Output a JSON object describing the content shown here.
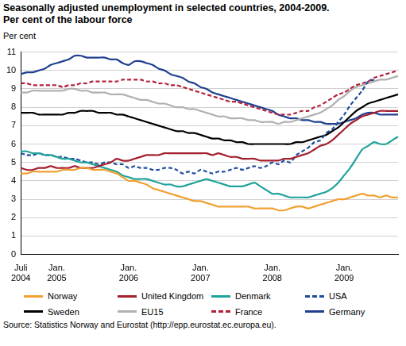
{
  "chart_data": {
    "type": "line",
    "title": "Seasonally adjusted unemployment in selected countries, 2004-2009.",
    "subtitle": "Per cent of the labour force",
    "y_label": "Per cent",
    "source": "Source: Statistics Norway and  Eurostat (http://epp.eurostat.ec.europa.eu).",
    "categories": [
      "Juli 2004",
      null,
      null,
      null,
      null,
      null,
      "Jan. 2005",
      null,
      null,
      null,
      null,
      null,
      null,
      null,
      null,
      null,
      null,
      null,
      "Jan. 2006",
      null,
      null,
      null,
      null,
      null,
      null,
      null,
      null,
      null,
      null,
      null,
      "Jan. 2007",
      null,
      null,
      null,
      null,
      null,
      null,
      null,
      null,
      null,
      null,
      null,
      "Jan. 2008",
      null,
      null,
      null,
      null,
      null,
      null,
      null,
      null,
      null,
      null,
      null,
      "Jan. 2009",
      null,
      null,
      null,
      null,
      null,
      null,
      null,
      null,
      null
    ],
    "ylim": [
      0,
      11
    ],
    "yticks": [
      0,
      1,
      2,
      3,
      4,
      5,
      6,
      7,
      8,
      9,
      10,
      11
    ],
    "grid": true,
    "legend": "bottom",
    "series": [
      {
        "name": "Norway",
        "color": "#f0a030",
        "line_style": "solid",
        "values": [
          4.4,
          4.4,
          4.5,
          4.5,
          4.5,
          4.5,
          4.5,
          4.6,
          4.6,
          4.6,
          4.7,
          4.7,
          4.6,
          4.6,
          4.6,
          4.5,
          4.4,
          4.2,
          4.0,
          4.0,
          3.9,
          3.8,
          3.6,
          3.5,
          3.4,
          3.3,
          3.2,
          3.1,
          3.0,
          2.9,
          2.9,
          2.8,
          2.7,
          2.6,
          2.6,
          2.6,
          2.6,
          2.6,
          2.6,
          2.5,
          2.5,
          2.5,
          2.5,
          2.4,
          2.4,
          2.5,
          2.6,
          2.6,
          2.5,
          2.6,
          2.7,
          2.8,
          2.9,
          3.0,
          3.0,
          3.1,
          3.2,
          3.3,
          3.2,
          3.2,
          3.1,
          3.2,
          3.1,
          3.1
        ]
      },
      {
        "name": "United Kingdom",
        "color": "#a31f2e",
        "line_style": "solid",
        "values": [
          4.7,
          4.6,
          4.6,
          4.7,
          4.7,
          4.8,
          4.7,
          4.7,
          4.7,
          4.8,
          4.7,
          4.7,
          4.7,
          4.8,
          4.9,
          5.0,
          5.2,
          5.1,
          5.1,
          5.2,
          5.3,
          5.4,
          5.4,
          5.4,
          5.5,
          5.5,
          5.5,
          5.5,
          5.5,
          5.5,
          5.5,
          5.5,
          5.4,
          5.5,
          5.4,
          5.3,
          5.3,
          5.2,
          5.2,
          5.2,
          5.1,
          5.1,
          5.1,
          5.1,
          5.2,
          5.2,
          5.3,
          5.4,
          5.5,
          5.7,
          5.9,
          6.0,
          6.2,
          6.5,
          6.8,
          7.1,
          7.3,
          7.5,
          7.6,
          7.7,
          7.8,
          7.8,
          7.8,
          7.8
        ]
      },
      {
        "name": "Denmark",
        "color": "#1fa39a",
        "line_style": "solid",
        "values": [
          5.6,
          5.6,
          5.5,
          5.5,
          5.4,
          5.4,
          5.3,
          5.2,
          5.2,
          5.1,
          5.0,
          5.0,
          4.9,
          4.8,
          4.7,
          4.6,
          4.5,
          4.3,
          4.2,
          4.1,
          4.1,
          4.1,
          4.0,
          3.9,
          3.8,
          3.8,
          3.7,
          3.7,
          3.8,
          3.9,
          4.0,
          4.1,
          4.0,
          3.9,
          3.8,
          3.7,
          3.7,
          3.7,
          3.8,
          3.9,
          3.7,
          3.5,
          3.3,
          3.3,
          3.2,
          3.1,
          3.1,
          3.1,
          3.1,
          3.2,
          3.3,
          3.4,
          3.6,
          3.9,
          4.3,
          4.7,
          5.2,
          5.7,
          5.9,
          6.1,
          6.0,
          6.0,
          6.2,
          6.4
        ]
      },
      {
        "name": "USA",
        "color": "#1e4d9e",
        "line_style": "dashed",
        "values": [
          5.5,
          5.4,
          5.4,
          5.5,
          5.4,
          5.4,
          5.3,
          5.3,
          5.2,
          5.2,
          5.1,
          5.0,
          5.0,
          4.9,
          5.0,
          5.0,
          4.9,
          4.9,
          4.7,
          4.8,
          4.7,
          4.7,
          4.6,
          4.6,
          4.7,
          4.7,
          4.6,
          4.4,
          4.5,
          4.4,
          4.6,
          4.5,
          4.4,
          4.5,
          4.5,
          4.6,
          4.7,
          4.6,
          4.7,
          4.8,
          4.7,
          4.8,
          5.0,
          4.9,
          5.1,
          5.0,
          5.4,
          5.6,
          5.8,
          6.1,
          6.2,
          6.6,
          6.8,
          7.2,
          7.6,
          8.1,
          8.5,
          8.9,
          9.4,
          9.5,
          null,
          null,
          null,
          null
        ]
      },
      {
        "name": "Sweden",
        "color": "#000000",
        "line_style": "solid",
        "values": [
          7.7,
          7.7,
          7.7,
          7.6,
          7.6,
          7.6,
          7.6,
          7.6,
          7.7,
          7.7,
          7.8,
          7.8,
          7.8,
          7.7,
          7.7,
          7.7,
          7.6,
          7.6,
          7.5,
          7.4,
          7.3,
          7.2,
          7.1,
          7.0,
          6.9,
          6.8,
          6.7,
          6.7,
          6.6,
          6.6,
          6.5,
          6.4,
          6.3,
          6.3,
          6.2,
          6.2,
          6.1,
          6.1,
          6.0,
          6.0,
          6.0,
          6.0,
          6.0,
          6.0,
          6.0,
          6.0,
          6.1,
          6.1,
          6.2,
          6.3,
          6.4,
          6.5,
          6.7,
          6.9,
          7.2,
          7.5,
          7.8,
          8.0,
          8.2,
          8.3,
          8.4,
          8.5,
          8.6,
          8.7
        ]
      },
      {
        "name": "EU15",
        "color": "#b0b0b0",
        "line_style": "solid",
        "values": [
          8.8,
          8.8,
          8.9,
          8.9,
          8.9,
          8.9,
          8.9,
          8.9,
          9.0,
          9.0,
          8.9,
          8.9,
          8.8,
          8.8,
          8.8,
          8.7,
          8.7,
          8.7,
          8.6,
          8.5,
          8.4,
          8.4,
          8.3,
          8.2,
          8.2,
          8.1,
          8.0,
          8.0,
          7.9,
          7.9,
          7.8,
          7.7,
          7.6,
          7.5,
          7.5,
          7.4,
          7.4,
          7.4,
          7.3,
          7.3,
          7.2,
          7.2,
          7.2,
          7.1,
          7.2,
          7.2,
          7.3,
          7.4,
          7.5,
          7.6,
          7.7,
          7.9,
          8.1,
          8.4,
          8.6,
          8.9,
          9.1,
          9.2,
          9.3,
          9.4,
          9.5,
          9.5,
          9.6,
          9.7
        ]
      },
      {
        "name": "France",
        "color": "#b3203a",
        "line_style": "dashed",
        "values": [
          9.3,
          9.3,
          9.2,
          9.2,
          9.2,
          9.2,
          9.2,
          9.1,
          9.2,
          9.2,
          9.3,
          9.3,
          9.4,
          9.4,
          9.4,
          9.4,
          9.4,
          9.5,
          9.5,
          9.5,
          9.5,
          9.4,
          9.4,
          9.3,
          9.3,
          9.2,
          9.2,
          9.1,
          9.0,
          8.9,
          8.8,
          8.7,
          8.6,
          8.5,
          8.4,
          8.3,
          8.3,
          8.2,
          8.1,
          8.0,
          7.9,
          7.8,
          7.7,
          7.6,
          7.6,
          7.6,
          7.7,
          7.8,
          7.8,
          8.0,
          8.1,
          8.3,
          8.5,
          8.7,
          8.8,
          9.0,
          9.2,
          9.3,
          9.4,
          9.6,
          9.7,
          9.8,
          9.9,
          10.0
        ]
      },
      {
        "name": "Germany",
        "color": "#1f3f8f",
        "line_style": "solid",
        "values": [
          9.8,
          9.9,
          9.9,
          10.0,
          10.1,
          10.3,
          10.4,
          10.5,
          10.6,
          10.8,
          10.8,
          10.7,
          10.7,
          10.7,
          10.7,
          10.6,
          10.6,
          10.4,
          10.3,
          10.5,
          10.5,
          10.4,
          10.3,
          10.1,
          10.0,
          9.8,
          9.7,
          9.6,
          9.4,
          9.3,
          9.1,
          9.0,
          8.8,
          8.7,
          8.6,
          8.5,
          8.4,
          8.3,
          8.2,
          8.1,
          8.0,
          7.9,
          7.8,
          7.6,
          7.5,
          7.4,
          7.4,
          7.3,
          7.3,
          7.2,
          7.2,
          7.1,
          7.1,
          7.1,
          7.2,
          7.3,
          7.4,
          7.6,
          7.7,
          7.7,
          7.6,
          7.6,
          7.6,
          7.6
        ]
      }
    ]
  }
}
